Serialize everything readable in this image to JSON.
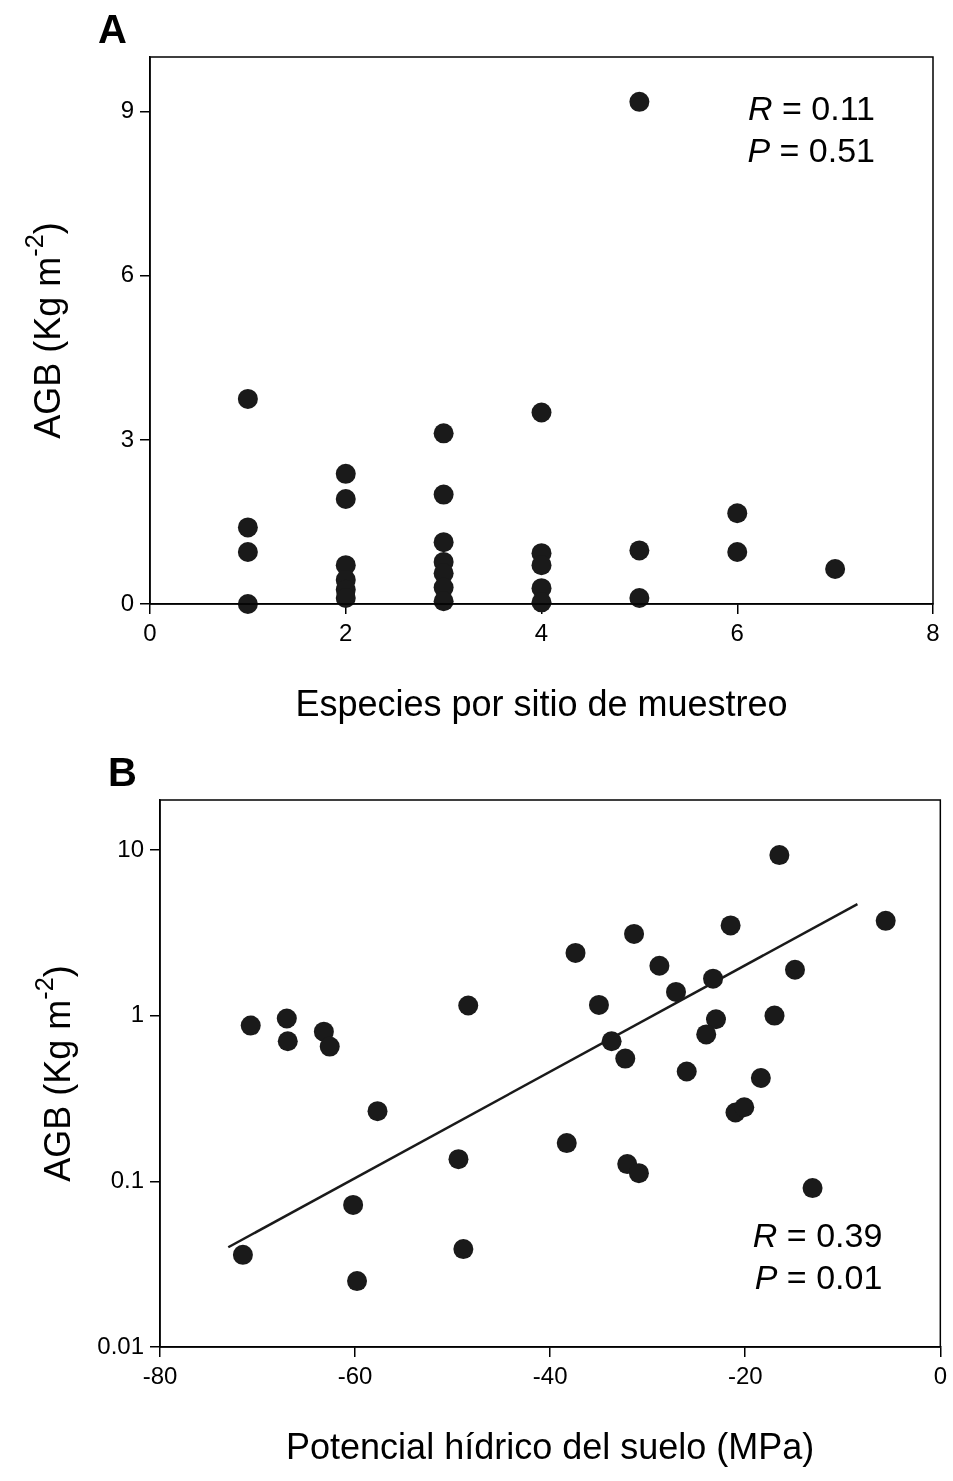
{
  "chart_data": [
    {
      "type": "scatter",
      "title": "A",
      "xlabel": "Especies por sitio de muestreo",
      "ylabel": "AGB (Kg m$^{-2}$)",
      "xlim": [
        0,
        8
      ],
      "xticks": [
        0,
        2,
        4,
        6,
        8
      ],
      "ylim": [
        0,
        10
      ],
      "yticks": [
        0,
        3,
        6,
        9
      ],
      "grid": false,
      "marker": "circle",
      "annotations": [
        "R = 0.11",
        "P = 0.51"
      ],
      "series": [
        {
          "color": "#1a1a1a",
          "x": [
            1,
            1,
            1,
            1,
            2,
            2,
            2,
            2,
            2,
            2,
            3,
            3,
            3,
            3,
            3,
            3,
            3,
            4,
            4,
            4,
            4,
            4,
            5,
            5,
            5,
            6,
            6,
            7
          ],
          "values": [
            3.75,
            1.4,
            0.95,
            0,
            2.38,
            1.92,
            0.71,
            0.44,
            0.26,
            0.11,
            3.12,
            2.0,
            1.13,
            0.77,
            0.56,
            0.3,
            0.05,
            3.5,
            0.93,
            0.71,
            0.29,
            0.03,
            9.18,
            0.98,
            0.11,
            1.66,
            0.95,
            0.64
          ]
        }
      ]
    },
    {
      "type": "scatter",
      "title": "B",
      "xlabel": "Potencial hídrico del suelo (MPa)",
      "ylabel": "AGB (Kg m$^{-2}$)",
      "xlim": [
        -80,
        0
      ],
      "xticks": [
        -80,
        -60,
        -40,
        -20,
        0
      ],
      "ylim": [
        0.01,
        20
      ],
      "yticks": [
        0.01,
        0.1,
        1,
        10
      ],
      "log": "y",
      "grid": false,
      "marker": "circle",
      "annotations": [
        "R = 0.39",
        "P = 0.01"
      ],
      "series": [
        {
          "color": "#1a1a1a",
          "x": [
            -70.7,
            -67.0,
            -66.9,
            -63.2,
            -62.6,
            -57.7,
            -48.4,
            -49.4,
            -60.2,
            -71.5,
            -59.8,
            -48.9,
            -37.4,
            -31.4,
            -35.0,
            -33.7,
            -32.3,
            -28.8,
            -27.1,
            -23.3,
            -21.5,
            -16.5,
            -14.9,
            -5.6,
            -23.0,
            -24.0,
            -26.0,
            -17.0,
            -18.4,
            -21.0,
            -20.1,
            -38.3,
            -32.1,
            -30.9,
            -13.1
          ],
          "values": [
            0.87,
            0.96,
            0.7,
            0.8,
            0.65,
            0.265,
            1.15,
            0.136,
            0.072,
            0.036,
            0.025,
            0.039,
            2.39,
            3.11,
            1.16,
            0.7,
            0.55,
            2.0,
            1.39,
            1.67,
            3.5,
            9.3,
            1.89,
            3.73,
            0.95,
            0.77,
            0.46,
            1.0,
            0.42,
            0.26,
            0.28,
            0.17,
            0.127,
            0.112,
            0.091
          ]
        },
        {
          "type": "line",
          "color": "#1a1a1a",
          "x": [
            -73.0,
            -8.5
          ],
          "values": [
            0.04,
            4.71
          ],
          "marker": "none"
        }
      ]
    }
  ]
}
